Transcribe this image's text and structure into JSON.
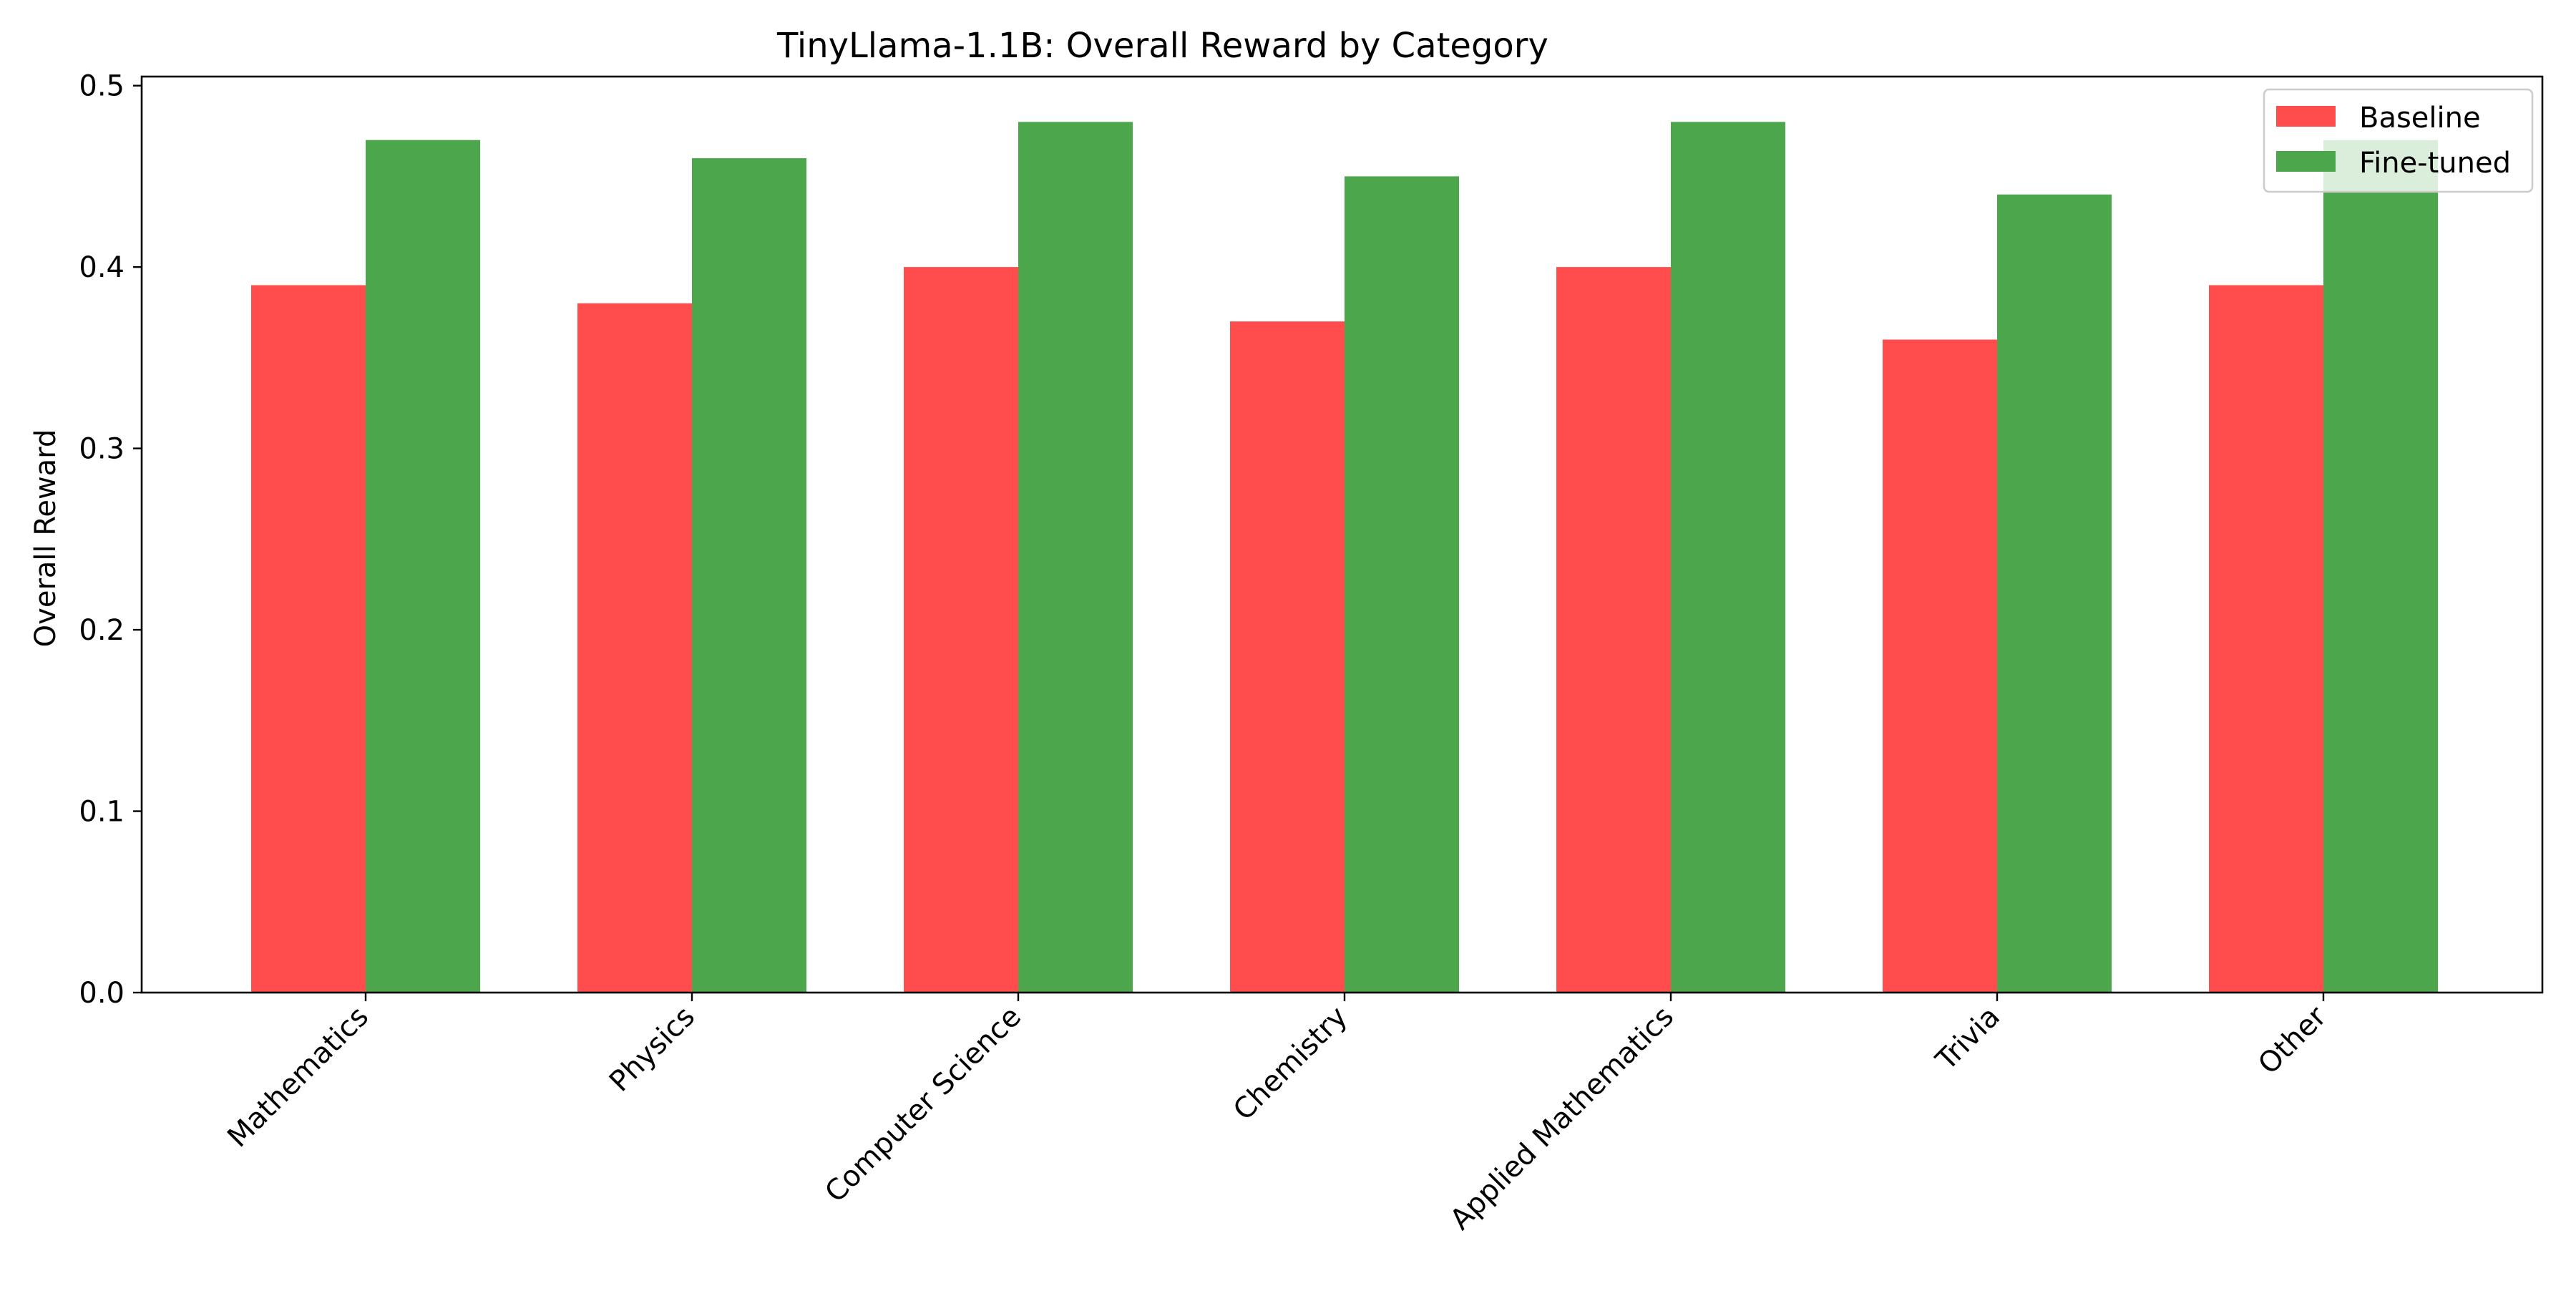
{
  "chart_data": {
    "type": "bar",
    "title": "TinyLlama-1.1B: Overall Reward by Category",
    "xlabel": "",
    "ylabel": "Overall Reward",
    "categories": [
      "Mathematics",
      "Physics",
      "Computer Science",
      "Chemistry",
      "Applied Mathematics",
      "Trivia",
      "Other"
    ],
    "series": [
      {
        "name": "Baseline",
        "color": "#ff4d4d",
        "values": [
          0.39,
          0.38,
          0.4,
          0.37,
          0.4,
          0.36,
          0.39
        ]
      },
      {
        "name": "Fine-tuned",
        "color": "#4ca64c",
        "values": [
          0.47,
          0.46,
          0.48,
          0.45,
          0.48,
          0.44,
          0.47
        ]
      }
    ],
    "ylim": [
      0,
      0.505
    ],
    "yticks": [
      "0.0",
      "0.1",
      "0.2",
      "0.3",
      "0.4",
      "0.5"
    ],
    "grid": false,
    "legend_position": "top-right"
  }
}
